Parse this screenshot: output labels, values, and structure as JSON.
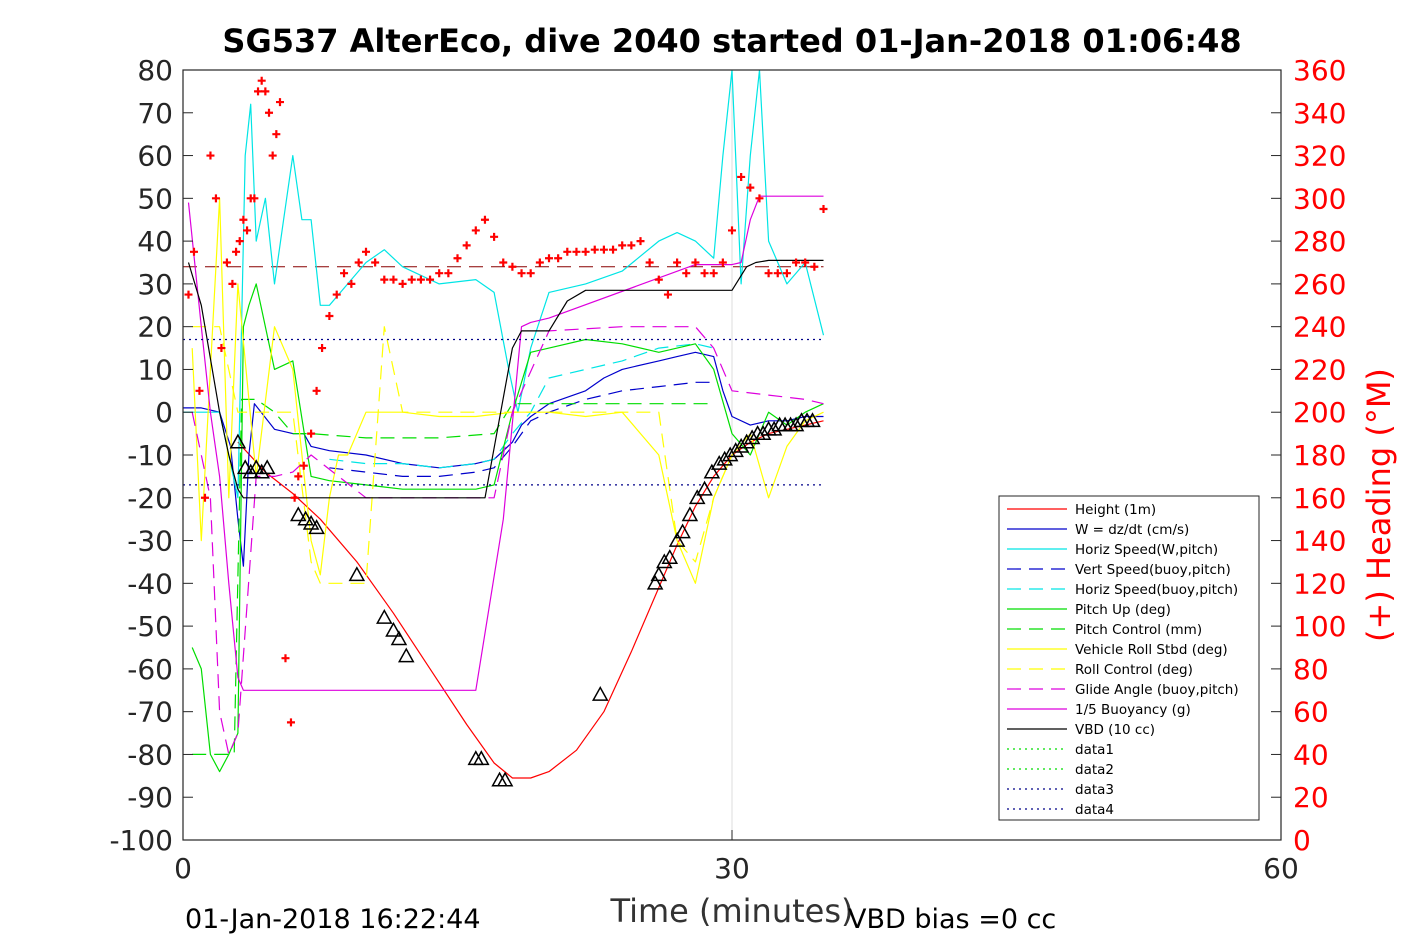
{
  "chart_data": {
    "type": "line",
    "title": "SG537 AlterEco, dive 2040 started 01-Jan-2018 01:06:48",
    "xlabel": "Time (minutes)",
    "ylabel_right": "(+) Heading (°M)",
    "xlim": [
      0,
      60
    ],
    "ylim_left": [
      -100,
      80
    ],
    "ylim_right": [
      0,
      360
    ],
    "x_ticks": [
      "0",
      "30",
      "60"
    ],
    "y_ticks_left": [
      "80",
      "70",
      "60",
      "50",
      "40",
      "30",
      "20",
      "10",
      "0",
      "-10",
      "-20",
      "-30",
      "-40",
      "-50",
      "-60",
      "-70",
      "-80",
      "-90",
      "-100"
    ],
    "y_ticks_right": [
      "360",
      "340",
      "320",
      "300",
      "280",
      "260",
      "240",
      "220",
      "200",
      "180",
      "160",
      "140",
      "120",
      "100",
      "80",
      "60",
      "40",
      "20",
      "0"
    ],
    "grid": "x-only",
    "legend_position": "lower-right",
    "footer_left": "01-Jan-2018 16:22:44",
    "footer_right": "VBD bias =0 cc",
    "colors": {
      "heading": "#ff0000",
      "right_axis": "#ff0000"
    },
    "series": [
      {
        "name": "Height (1m)",
        "color": "#ff0000",
        "style": "solid",
        "x": [
          3.0,
          4.5,
          6.0,
          7.5,
          9.5,
          11.5,
          13.5,
          15.5,
          17.0,
          18.0,
          19.0,
          20.0,
          21.5,
          23.0,
          24.5,
          26.0,
          27.0,
          28.0,
          29.0,
          30.0,
          31.0,
          32.0,
          33.0,
          34.0,
          35.0
        ],
        "y": [
          -7,
          -14,
          -19,
          -25,
          -35,
          -47,
          -60,
          -73,
          -82,
          -85.5,
          -85.5,
          -84,
          -79,
          -70,
          -56,
          -41,
          -31,
          -22,
          -15,
          -10,
          -7,
          -5,
          -4,
          -3,
          -2
        ]
      },
      {
        "name": "W = dz/dt (cm/s)",
        "color": "#0000cc",
        "style": "solid",
        "x": [
          0,
          1,
          2,
          2.6,
          3.0,
          3.3,
          3.6,
          3.9,
          5.0,
          6.0,
          6.6,
          7.0,
          8.0,
          10,
          12,
          14,
          16,
          17,
          18,
          18.5,
          19,
          20,
          22,
          23,
          24,
          26,
          27,
          28,
          29,
          29.5,
          30,
          31,
          32,
          33,
          34,
          35
        ],
        "y": [
          1,
          1,
          0,
          -8,
          -25,
          -36,
          -10,
          2,
          -4,
          -5,
          -5,
          -8,
          -9,
          -10,
          -12,
          -13,
          -12,
          -11,
          -7,
          -3,
          -1,
          2,
          5,
          8,
          10,
          12,
          13,
          14,
          13,
          5,
          -1,
          -3,
          -2,
          -2,
          -1,
          -1
        ]
      },
      {
        "name": "Horiz Speed(W,pitch)",
        "color": "#00e5e5",
        "style": "solid",
        "x": [
          0,
          1,
          2,
          3.0,
          3.4,
          3.7,
          4.0,
          4.5,
          5.0,
          5.5,
          6.0,
          6.5,
          7.0,
          7.5,
          8.0,
          9.0,
          10,
          11,
          12,
          14,
          16,
          17,
          17.8,
          18.3,
          19,
          20,
          22,
          24,
          26,
          27,
          28,
          29,
          29.5,
          30,
          30.5,
          31,
          31.5,
          32,
          33,
          34,
          35
        ],
        "y": [
          0,
          0,
          0,
          -20,
          60,
          72,
          40,
          50,
          30,
          45,
          60,
          45,
          45,
          25,
          25,
          30,
          35,
          38,
          34,
          30,
          31,
          28,
          10,
          0,
          15,
          28,
          30,
          33,
          40,
          42,
          40,
          36,
          60,
          80,
          30,
          60,
          80,
          40,
          30,
          35,
          18
        ]
      },
      {
        "name": "Vert Speed(buoy,pitch)",
        "color": "#0000cc",
        "style": "dashed",
        "x": [
          8,
          10,
          12,
          14,
          16,
          17,
          18,
          19,
          20,
          22,
          24,
          26,
          28,
          29
        ],
        "y": [
          -13,
          -14,
          -15,
          -15,
          -14,
          -13,
          -8,
          -2,
          0,
          3,
          5,
          6,
          7,
          7
        ]
      },
      {
        "name": "Horiz Speed(buoy,pitch)",
        "color": "#00e5e5",
        "style": "dashed",
        "x": [
          8,
          10,
          12,
          14,
          16,
          17,
          18,
          19,
          20,
          22,
          24,
          26,
          28,
          29
        ],
        "y": [
          -11,
          -12,
          -12,
          -13,
          -12,
          -11,
          -5,
          0,
          8,
          10,
          12,
          15,
          16,
          15
        ]
      },
      {
        "name": "Pitch Up (deg)",
        "color": "#00dd00",
        "style": "solid",
        "x": [
          0.5,
          1.0,
          1.5,
          2.0,
          2.5,
          3.0,
          3.3,
          3.6,
          4.0,
          5.0,
          6.0,
          7.0,
          8.0,
          10,
          12,
          14,
          16,
          17,
          18,
          19,
          20,
          22,
          24,
          26,
          28,
          29,
          30,
          31,
          32,
          33,
          34,
          35
        ],
        "y": [
          -55,
          -60,
          -80,
          -84,
          -80,
          -75,
          20,
          25,
          30,
          10,
          12,
          -15,
          -16,
          -17,
          -18,
          -18,
          -18,
          -17,
          0,
          14,
          15,
          17,
          16,
          14,
          16,
          10,
          -5,
          -10,
          0,
          -3,
          0,
          2
        ]
      },
      {
        "name": "Pitch Control (mm)",
        "color": "#00dd00",
        "style": "dashed",
        "x": [
          0.5,
          2.0,
          2.8,
          3.2,
          4.0,
          5.0,
          6.0,
          6.5,
          7.0,
          10,
          14,
          17,
          18,
          20,
          24,
          28,
          29
        ],
        "y": [
          -80,
          -80,
          -80,
          3,
          3,
          0,
          -5,
          -5,
          -5,
          -6,
          -6,
          -5,
          2,
          2,
          2,
          2,
          2
        ]
      },
      {
        "name": "Vehicle Roll Stbd (deg)",
        "color": "#ffff00",
        "style": "solid",
        "x": [
          0.5,
          1.0,
          1.5,
          2.0,
          2.5,
          3.0,
          4.0,
          5.0,
          6.0,
          7.0,
          7.5,
          8.0,
          8.5,
          9.0,
          10,
          11,
          12,
          14,
          16,
          18,
          20,
          22,
          24,
          26,
          27,
          28,
          29,
          30,
          31,
          32,
          33,
          34,
          35
        ],
        "y": [
          15,
          -30,
          10,
          50,
          -20,
          30,
          -15,
          20,
          10,
          -30,
          -38,
          -20,
          -10,
          -10,
          0,
          0,
          0,
          -1,
          -1,
          0,
          0,
          -1,
          0,
          -10,
          -30,
          -40,
          -20,
          -10,
          -5,
          -20,
          -8,
          -2,
          0
        ]
      },
      {
        "name": "Roll Control (deg)",
        "color": "#ffff00",
        "style": "dashed",
        "x": [
          0.5,
          2.0,
          3.0,
          4.0,
          6.0,
          7.0,
          7.5,
          8.0,
          9.0,
          10,
          11,
          12,
          14,
          18,
          20,
          26,
          27,
          28,
          29,
          30
        ],
        "y": [
          20,
          20,
          0,
          0,
          0,
          -35,
          -40,
          -40,
          -40,
          -40,
          20,
          0,
          0,
          0,
          0,
          0,
          -30,
          -35,
          -20,
          -10
        ]
      },
      {
        "name": "Glide Angle (buoy,pitch)",
        "color": "#dd00dd",
        "style": "dashed",
        "x": [
          0.5,
          1.0,
          1.5,
          2.0,
          2.5,
          3.0,
          4.0,
          5.0,
          6.0,
          7.0,
          10,
          14,
          17,
          18,
          20,
          24,
          28,
          29,
          30,
          32,
          34,
          35
        ],
        "y": [
          0,
          -10,
          -20,
          -70,
          -80,
          -75,
          -15,
          -15,
          -14,
          -10,
          -20,
          -20,
          -20,
          0,
          19,
          20,
          20,
          15,
          5,
          4,
          3,
          2
        ]
      },
      {
        "name": "1/5 Buoyancy (g)",
        "color": "#dd00dd",
        "style": "solid",
        "x": [
          0.3,
          1.0,
          1.5,
          2.0,
          2.5,
          3.0,
          3.3,
          16.0,
          17.5,
          18.5,
          19.0,
          20.0,
          28.0,
          30.0,
          30.5,
          31.0,
          31.5,
          35.0
        ],
        "y": [
          49,
          20,
          0,
          -15,
          -40,
          -62,
          -65,
          -65,
          -25,
          20,
          21,
          22,
          34.5,
          34.5,
          35,
          45,
          50.5,
          50.5
        ]
      },
      {
        "name": "VBD (10 cc)",
        "color": "#000000",
        "style": "solid",
        "x": [
          0.3,
          1.0,
          2.0,
          2.5,
          3.0,
          3.3,
          16.0,
          16.5,
          18.0,
          18.5,
          19.0,
          20.0,
          21.0,
          22.0,
          30.0,
          30.8,
          31.3,
          32.0,
          35.0
        ],
        "y": [
          35,
          25,
          0,
          -10,
          -18,
          -20,
          -20,
          -20,
          15,
          19,
          19,
          19,
          26,
          28.5,
          28.5,
          34,
          35,
          35.5,
          35.5
        ]
      },
      {
        "name": "data1",
        "color": "#00dd00",
        "style": "dotted",
        "x": [],
        "y": []
      },
      {
        "name": "data2",
        "color": "#00dd00",
        "style": "dotted",
        "x": [],
        "y": []
      },
      {
        "name": "data3",
        "color": "#000088",
        "style": "dotted",
        "x": [
          0,
          35
        ],
        "y": [
          17,
          17
        ]
      },
      {
        "name": "data4",
        "color": "#000088",
        "style": "dotted",
        "x": [
          0,
          35
        ],
        "y": [
          -17,
          -17
        ]
      }
    ],
    "reference_lines": [
      {
        "color": "#880000",
        "style": "dashed",
        "y": 34,
        "x": [
          0,
          35
        ]
      }
    ],
    "heading_markers": {
      "marker": "+",
      "axis": "right",
      "color": "#ff0000",
      "x": [
        0.3,
        0.6,
        0.9,
        1.2,
        1.5,
        1.8,
        2.1,
        2.4,
        2.7,
        2.9,
        3.1,
        3.3,
        3.5,
        3.7,
        3.9,
        4.1,
        4.3,
        4.5,
        4.7,
        4.9,
        5.1,
        5.3,
        5.6,
        5.9,
        6.1,
        6.3,
        6.6,
        7.0,
        7.3,
        7.6,
        8.0,
        8.4,
        8.8,
        9.2,
        9.6,
        10.0,
        10.5,
        11,
        11.5,
        12,
        12.5,
        13,
        13.5,
        14,
        14.5,
        15,
        15.5,
        16,
        16.5,
        17,
        17.5,
        18,
        18.5,
        19,
        19.5,
        20,
        20.5,
        21,
        21.5,
        22,
        22.5,
        23,
        23.5,
        24,
        24.5,
        25,
        25.5,
        26,
        26.5,
        27,
        27.5,
        28,
        28.5,
        29,
        29.5,
        30,
        30.5,
        31,
        31.5,
        32,
        32.5,
        33,
        33.5,
        34,
        34.5,
        35
      ],
      "y": [
        255,
        275,
        210,
        160,
        320,
        300,
        230,
        270,
        260,
        275,
        280,
        290,
        285,
        300,
        300,
        350,
        355,
        350,
        340,
        320,
        330,
        345,
        85,
        55,
        160,
        170,
        175,
        190,
        210,
        230,
        245,
        255,
        265,
        260,
        270,
        275,
        270,
        262,
        262,
        260,
        262,
        262,
        262,
        265,
        265,
        272,
        278,
        285,
        290,
        282,
        270,
        268,
        265,
        265,
        270,
        272,
        272,
        275,
        275,
        275,
        276,
        276,
        276,
        278,
        278,
        280,
        270,
        262,
        255,
        270,
        265,
        270,
        265,
        265,
        270,
        285,
        310,
        305,
        300,
        265,
        265,
        265,
        270,
        270,
        268,
        295
      ]
    },
    "depth_markers": {
      "marker": "triangle",
      "color": "#000000",
      "x": [
        3.0,
        3.4,
        3.7,
        4.0,
        4.3,
        4.6,
        6.3,
        6.7,
        7.0,
        7.3,
        9.5,
        11.0,
        11.5,
        11.8,
        12.2,
        16.0,
        16.3,
        17.3,
        17.6,
        22.8,
        25.8,
        26.0,
        26.3,
        26.6,
        27.0,
        27.3,
        27.7,
        28.1,
        28.5,
        28.9,
        29.3,
        29.6,
        29.9,
        30.2,
        30.5,
        30.8,
        31.1,
        31.4,
        31.7,
        32.0,
        32.3,
        32.6,
        32.9,
        33.2,
        33.5,
        33.8,
        34.1,
        34.4
      ],
      "y": [
        -7,
        -13,
        -14,
        -13,
        -14,
        -13,
        -24,
        -25,
        -26,
        -27,
        -38,
        -48,
        -51,
        -53,
        -57,
        -81,
        -81,
        -86,
        -86,
        -66,
        -40,
        -38,
        -35,
        -34,
        -30,
        -28,
        -24,
        -20,
        -18,
        -14,
        -12,
        -11,
        -10,
        -9,
        -8,
        -7,
        -6,
        -5,
        -5,
        -4,
        -4,
        -3,
        -3,
        -3,
        -3,
        -2,
        -2,
        -2
      ]
    }
  }
}
